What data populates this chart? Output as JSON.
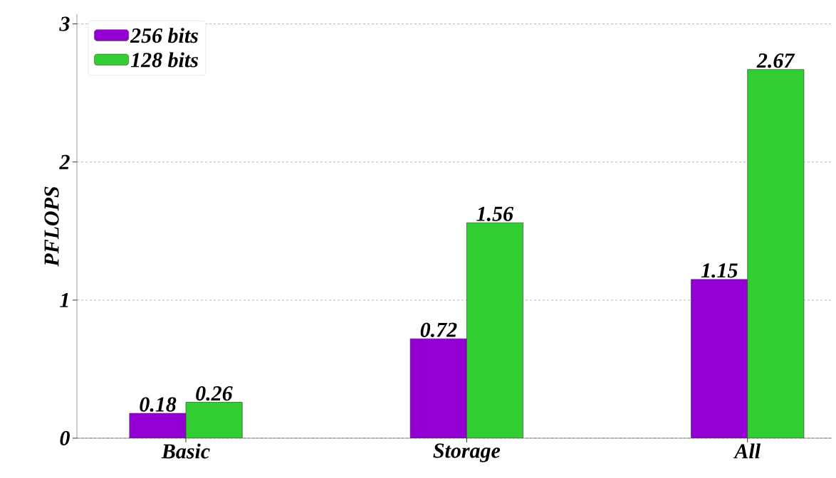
{
  "chart_data": {
    "type": "bar",
    "ylabel": "PFLOPS",
    "categories": [
      "Basic",
      "Storage",
      "All"
    ],
    "series": [
      {
        "name": "256 bits",
        "color": "#9400d3",
        "values": [
          0.18,
          0.72,
          1.15
        ]
      },
      {
        "name": "128 bits",
        "color": "#32cd32",
        "values": [
          0.26,
          1.56,
          2.67
        ]
      }
    ],
    "ylim": [
      0,
      3.07
    ],
    "yticks": [
      0,
      1,
      2,
      3
    ],
    "grid": "y",
    "legend": "top left",
    "data_labels": true
  }
}
